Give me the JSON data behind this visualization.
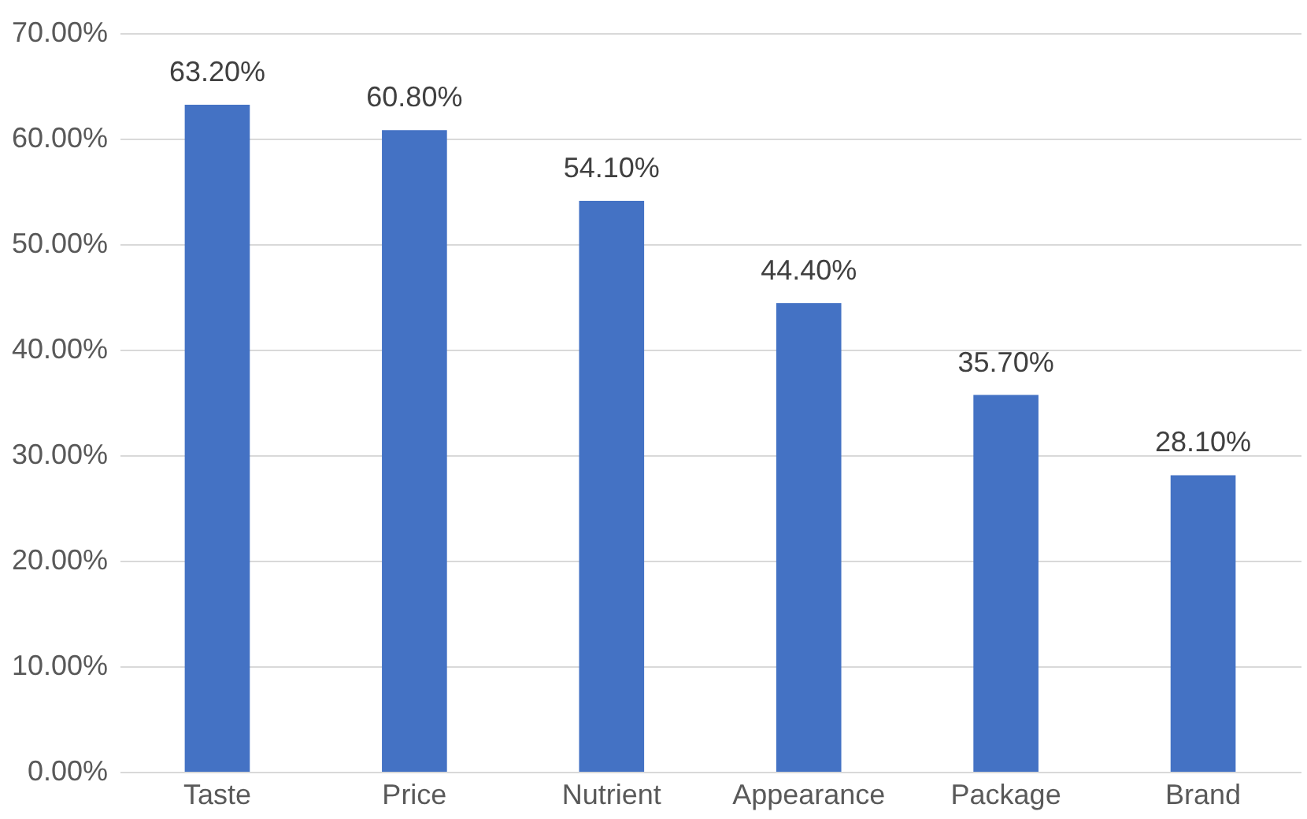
{
  "chart_data": {
    "type": "bar",
    "categories": [
      "Taste",
      "Price",
      "Nutrient",
      "Appearance",
      "Package",
      "Brand"
    ],
    "values": [
      63.2,
      60.8,
      54.1,
      44.4,
      35.7,
      28.1
    ],
    "value_labels": [
      "63.20%",
      "60.80%",
      "54.10%",
      "44.40%",
      "35.70%",
      "28.10%"
    ],
    "color": "#4472c4",
    "ylim": [
      0,
      70
    ],
    "yticks": [
      {
        "value": 0,
        "label": "0.00%"
      },
      {
        "value": 10,
        "label": "10.00%"
      },
      {
        "value": 20,
        "label": "20.00%"
      },
      {
        "value": 30,
        "label": "30.00%"
      },
      {
        "value": 40,
        "label": "40.00%"
      },
      {
        "value": 50,
        "label": "50.00%"
      },
      {
        "value": 60,
        "label": "60.00%"
      },
      {
        "value": 70,
        "label": "70.00%"
      }
    ],
    "grid": "y"
  }
}
